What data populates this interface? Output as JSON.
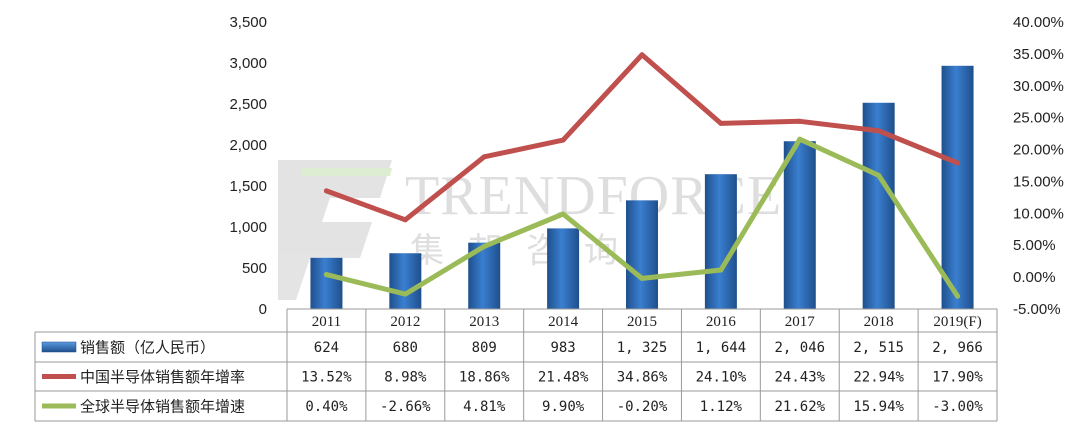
{
  "watermark": {
    "brand": "TRENDFORCE",
    "brand_cn": "集邦咨询"
  },
  "chart_data": {
    "type": "bar",
    "categories": [
      "2011",
      "2012",
      "2013",
      "2014",
      "2015",
      "2016",
      "2017",
      "2018",
      "2019(F)"
    ],
    "y_left": {
      "ylim": [
        0,
        3500
      ],
      "ticks": [
        "0",
        "500",
        "1,000",
        "1,500",
        "2,000",
        "2,500",
        "3,000",
        "3,500"
      ]
    },
    "y_right": {
      "ylim": [
        -5,
        40
      ],
      "ticks": [
        "-5.00%",
        "0.00%",
        "5.00%",
        "10.00%",
        "15.00%",
        "20.00%",
        "25.00%",
        "30.00%",
        "35.00%",
        "40.00%"
      ]
    },
    "series": [
      {
        "name": "销售额（亿人民币）",
        "type": "bar",
        "axis": "left",
        "color": "#2E6DB5",
        "values": [
          624,
          680,
          809,
          983,
          1325,
          1644,
          2046,
          2515,
          2966
        ],
        "labels": [
          "624",
          "680",
          "809",
          "983",
          "1, 325",
          "1, 644",
          "2, 046",
          "2, 515",
          "2, 966"
        ]
      },
      {
        "name": "中国半导体销售额年增率",
        "type": "line",
        "axis": "right",
        "color": "#C0504D",
        "values": [
          13.52,
          8.98,
          18.86,
          21.48,
          34.86,
          24.1,
          24.43,
          22.94,
          17.9
        ],
        "labels": [
          "13.52%",
          "8.98%",
          "18.86%",
          "21.48%",
          "34.86%",
          "24.10%",
          "24.43%",
          "22.94%",
          "17.90%"
        ]
      },
      {
        "name": "全球半导体销售额年增速",
        "type": "line",
        "axis": "right",
        "color": "#9BBB59",
        "values": [
          0.4,
          -2.66,
          4.81,
          9.9,
          -0.2,
          1.12,
          21.62,
          15.94,
          -3.0
        ],
        "labels": [
          "0.40%",
          "-2.66%",
          "4.81%",
          "9.90%",
          "-0.20%",
          "1.12%",
          "21.62%",
          "15.94%",
          "-3.00%"
        ]
      }
    ]
  }
}
